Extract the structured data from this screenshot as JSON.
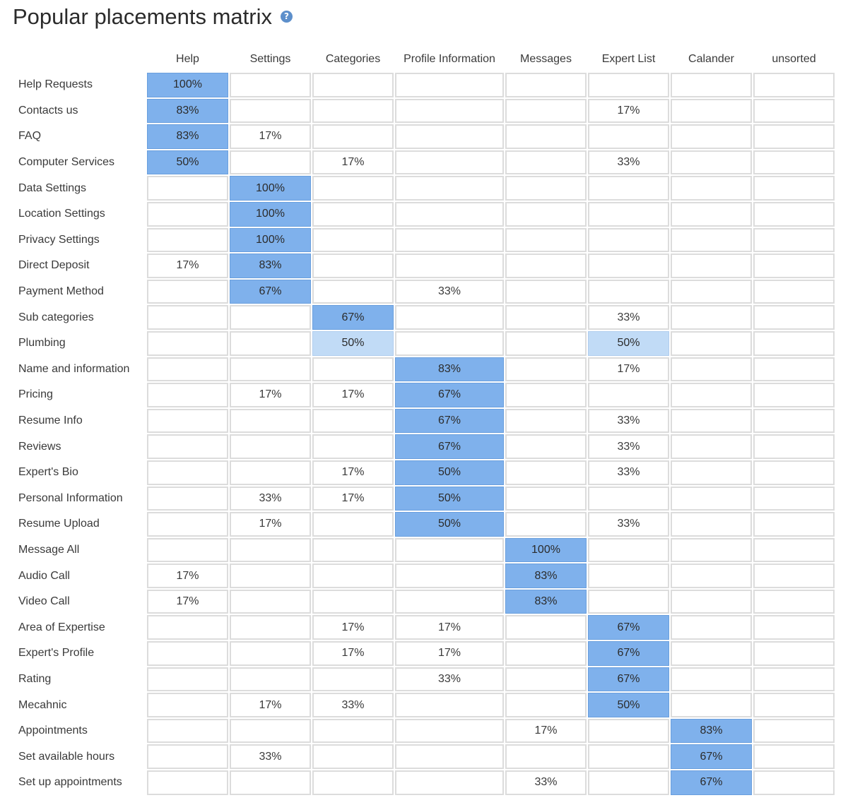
{
  "page": {
    "title": "Popular placements matrix",
    "help_icon_glyph": "?"
  },
  "colors": {
    "strong_placement": "#7fb1ec",
    "weak_placement": "#c1dbf6",
    "cell_border": "#dcdcdc"
  },
  "chart_data": {
    "type": "heatmap",
    "title": "Popular placements matrix",
    "columns": [
      "Help",
      "Settings",
      "Categories",
      "Profile Information",
      "Messages",
      "Expert List",
      "Calander",
      "unsorted"
    ],
    "rows": [
      {
        "label": "Help Requests",
        "cells": [
          "100%",
          "",
          "",
          "",
          "",
          "",
          "",
          ""
        ],
        "highlight": [
          "strong",
          "",
          "",
          "",
          "",
          "",
          "",
          ""
        ]
      },
      {
        "label": "Contacts us",
        "cells": [
          "83%",
          "",
          "",
          "",
          "",
          "17%",
          "",
          ""
        ],
        "highlight": [
          "strong",
          "",
          "",
          "",
          "",
          "",
          "",
          ""
        ]
      },
      {
        "label": "FAQ",
        "cells": [
          "83%",
          "17%",
          "",
          "",
          "",
          "",
          "",
          ""
        ],
        "highlight": [
          "strong",
          "",
          "",
          "",
          "",
          "",
          "",
          ""
        ]
      },
      {
        "label": "Computer Services",
        "cells": [
          "50%",
          "",
          "17%",
          "",
          "",
          "33%",
          "",
          ""
        ],
        "highlight": [
          "strong",
          "",
          "",
          "",
          "",
          "",
          "",
          ""
        ]
      },
      {
        "label": "Data Settings",
        "cells": [
          "",
          "100%",
          "",
          "",
          "",
          "",
          "",
          ""
        ],
        "highlight": [
          "",
          "strong",
          "",
          "",
          "",
          "",
          "",
          ""
        ]
      },
      {
        "label": "Location Settings",
        "cells": [
          "",
          "100%",
          "",
          "",
          "",
          "",
          "",
          ""
        ],
        "highlight": [
          "",
          "strong",
          "",
          "",
          "",
          "",
          "",
          ""
        ]
      },
      {
        "label": "Privacy Settings",
        "cells": [
          "",
          "100%",
          "",
          "",
          "",
          "",
          "",
          ""
        ],
        "highlight": [
          "",
          "strong",
          "",
          "",
          "",
          "",
          "",
          ""
        ]
      },
      {
        "label": "Direct Deposit",
        "cells": [
          "17%",
          "83%",
          "",
          "",
          "",
          "",
          "",
          ""
        ],
        "highlight": [
          "",
          "strong",
          "",
          "",
          "",
          "",
          "",
          ""
        ]
      },
      {
        "label": "Payment Method",
        "cells": [
          "",
          "67%",
          "",
          "33%",
          "",
          "",
          "",
          ""
        ],
        "highlight": [
          "",
          "strong",
          "",
          "",
          "",
          "",
          "",
          ""
        ]
      },
      {
        "label": "Sub categories",
        "cells": [
          "",
          "",
          "67%",
          "",
          "",
          "33%",
          "",
          ""
        ],
        "highlight": [
          "",
          "",
          "strong",
          "",
          "",
          "",
          "",
          ""
        ]
      },
      {
        "label": "Plumbing",
        "cells": [
          "",
          "",
          "50%",
          "",
          "",
          "50%",
          "",
          ""
        ],
        "highlight": [
          "",
          "",
          "soft",
          "",
          "",
          "soft",
          "",
          ""
        ]
      },
      {
        "label": "Name and information",
        "cells": [
          "",
          "",
          "",
          "83%",
          "",
          "17%",
          "",
          ""
        ],
        "highlight": [
          "",
          "",
          "",
          "strong",
          "",
          "",
          "",
          ""
        ]
      },
      {
        "label": "Pricing",
        "cells": [
          "",
          "17%",
          "17%",
          "67%",
          "",
          "",
          "",
          ""
        ],
        "highlight": [
          "",
          "",
          "",
          "strong",
          "",
          "",
          "",
          ""
        ]
      },
      {
        "label": "Resume Info",
        "cells": [
          "",
          "",
          "",
          "67%",
          "",
          "33%",
          "",
          ""
        ],
        "highlight": [
          "",
          "",
          "",
          "strong",
          "",
          "",
          "",
          ""
        ]
      },
      {
        "label": "Reviews",
        "cells": [
          "",
          "",
          "",
          "67%",
          "",
          "33%",
          "",
          ""
        ],
        "highlight": [
          "",
          "",
          "",
          "strong",
          "",
          "",
          "",
          ""
        ]
      },
      {
        "label": "Expert's Bio",
        "cells": [
          "",
          "",
          "17%",
          "50%",
          "",
          "33%",
          "",
          ""
        ],
        "highlight": [
          "",
          "",
          "",
          "strong",
          "",
          "",
          "",
          ""
        ]
      },
      {
        "label": "Personal Information",
        "cells": [
          "",
          "33%",
          "17%",
          "50%",
          "",
          "",
          "",
          ""
        ],
        "highlight": [
          "",
          "",
          "",
          "strong",
          "",
          "",
          "",
          ""
        ]
      },
      {
        "label": "Resume Upload",
        "cells": [
          "",
          "17%",
          "",
          "50%",
          "",
          "33%",
          "",
          ""
        ],
        "highlight": [
          "",
          "",
          "",
          "strong",
          "",
          "",
          "",
          ""
        ]
      },
      {
        "label": "Message All",
        "cells": [
          "",
          "",
          "",
          "",
          "100%",
          "",
          "",
          ""
        ],
        "highlight": [
          "",
          "",
          "",
          "",
          "strong",
          "",
          "",
          ""
        ]
      },
      {
        "label": "Audio Call",
        "cells": [
          "17%",
          "",
          "",
          "",
          "83%",
          "",
          "",
          ""
        ],
        "highlight": [
          "",
          "",
          "",
          "",
          "strong",
          "",
          "",
          ""
        ]
      },
      {
        "label": "Video Call",
        "cells": [
          "17%",
          "",
          "",
          "",
          "83%",
          "",
          "",
          ""
        ],
        "highlight": [
          "",
          "",
          "",
          "",
          "strong",
          "",
          "",
          ""
        ]
      },
      {
        "label": "Area of Expertise",
        "cells": [
          "",
          "",
          "17%",
          "17%",
          "",
          "67%",
          "",
          ""
        ],
        "highlight": [
          "",
          "",
          "",
          "",
          "",
          "strong",
          "",
          ""
        ]
      },
      {
        "label": "Expert's Profile",
        "cells": [
          "",
          "",
          "17%",
          "17%",
          "",
          "67%",
          "",
          ""
        ],
        "highlight": [
          "",
          "",
          "",
          "",
          "",
          "strong",
          "",
          ""
        ]
      },
      {
        "label": "Rating",
        "cells": [
          "",
          "",
          "",
          "33%",
          "",
          "67%",
          "",
          ""
        ],
        "highlight": [
          "",
          "",
          "",
          "",
          "",
          "strong",
          "",
          ""
        ]
      },
      {
        "label": "Mecahnic",
        "cells": [
          "",
          "17%",
          "33%",
          "",
          "",
          "50%",
          "",
          ""
        ],
        "highlight": [
          "",
          "",
          "",
          "",
          "",
          "strong",
          "",
          ""
        ]
      },
      {
        "label": "Appointments",
        "cells": [
          "",
          "",
          "",
          "",
          "17%",
          "",
          "83%",
          ""
        ],
        "highlight": [
          "",
          "",
          "",
          "",
          "",
          "",
          "strong",
          ""
        ]
      },
      {
        "label": "Set available hours",
        "cells": [
          "",
          "33%",
          "",
          "",
          "",
          "",
          "67%",
          ""
        ],
        "highlight": [
          "",
          "",
          "",
          "",
          "",
          "",
          "strong",
          ""
        ]
      },
      {
        "label": "Set up appointments",
        "cells": [
          "",
          "",
          "",
          "",
          "33%",
          "",
          "67%",
          ""
        ],
        "highlight": [
          "",
          "",
          "",
          "",
          "",
          "",
          "strong",
          ""
        ]
      }
    ]
  }
}
